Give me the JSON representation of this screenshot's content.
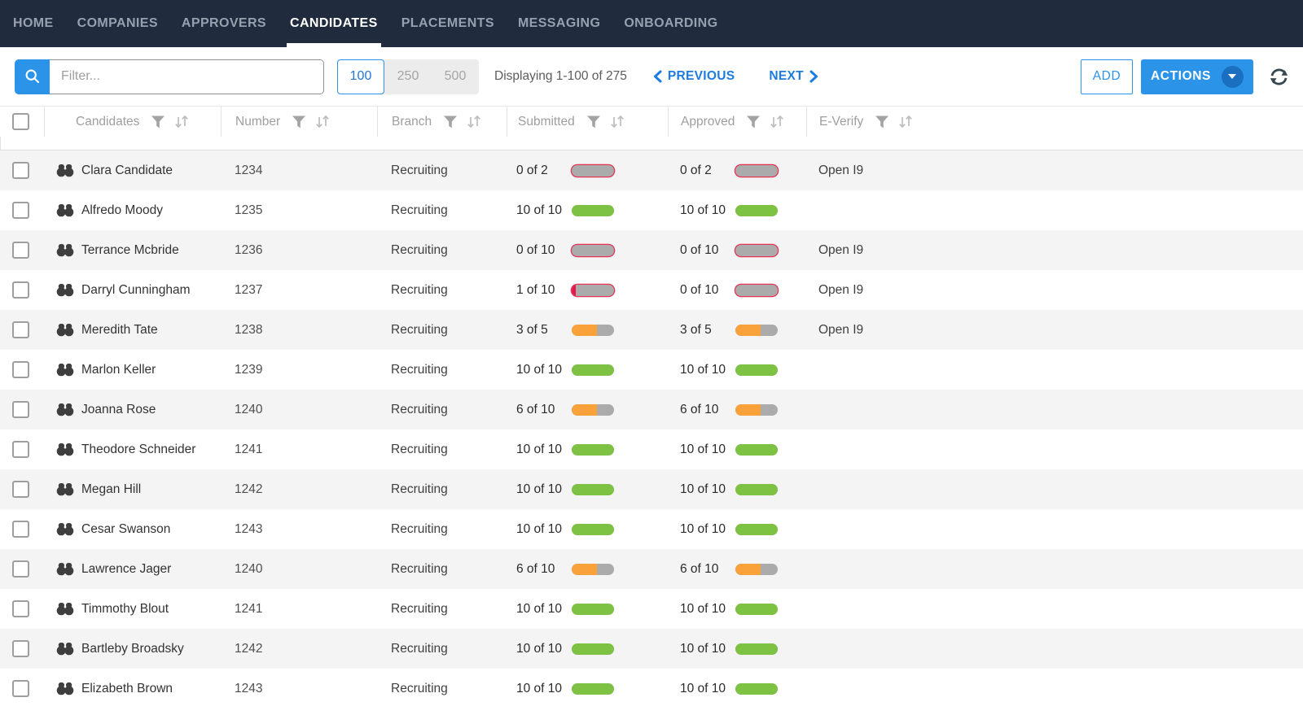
{
  "nav": {
    "items": [
      {
        "label": "HOME",
        "active": false
      },
      {
        "label": "COMPANIES",
        "active": false
      },
      {
        "label": "APPROVERS",
        "active": false
      },
      {
        "label": "CANDIDATES",
        "active": true
      },
      {
        "label": "PLACEMENTS",
        "active": false
      },
      {
        "label": "MESSAGING",
        "active": false
      },
      {
        "label": "ONBOARDING",
        "active": false
      }
    ]
  },
  "toolbar": {
    "filter_placeholder": "Filter...",
    "filter_value": "",
    "page_sizes": [
      {
        "label": "100",
        "active": true
      },
      {
        "label": "250",
        "active": false
      },
      {
        "label": "500",
        "active": false
      }
    ],
    "displaying": "Displaying 1-100 of 275",
    "previous_label": "PREVIOUS",
    "next_label": "NEXT",
    "add_label": "ADD",
    "actions_label": "ACTIONS"
  },
  "icons": {
    "search": "magnifier-icon",
    "filter": "funnel-icon",
    "sort": "sort-up-down-icon",
    "row_marker": "binoculars-icon",
    "previous": "chevron-left-icon",
    "next": "chevron-right-icon",
    "actions_menu": "caret-down-icon",
    "refresh": "refresh-arrows-icon"
  },
  "colors": {
    "nav_bg": "#202c3e",
    "accent_blue": "#2b93e8",
    "link_blue": "#1d7ce0",
    "bar_green": "#7dc242",
    "bar_orange": "#f9a13b",
    "bar_red": "#e8174a",
    "bar_track_gray": "#ababab",
    "row_alt_gray": "#f4f4f4"
  },
  "table": {
    "columns": [
      {
        "label": "Candidates"
      },
      {
        "label": "Number"
      },
      {
        "label": "Branch"
      },
      {
        "label": "Submitted"
      },
      {
        "label": "Approved"
      },
      {
        "label": "E-Verify"
      }
    ],
    "rows": [
      {
        "name": "Clara Candidate",
        "number": "1234",
        "branch": "Recruiting",
        "submitted": {
          "label": "0 of 2",
          "value": 0,
          "total": 2,
          "status": "red"
        },
        "approved": {
          "label": "0 of 2",
          "value": 0,
          "total": 2,
          "status": "red"
        },
        "everify": "Open I9"
      },
      {
        "name": "Alfredo Moody",
        "number": "1235",
        "branch": "Recruiting",
        "submitted": {
          "label": "10 of 10",
          "value": 10,
          "total": 10,
          "status": "green"
        },
        "approved": {
          "label": "10 of 10",
          "value": 10,
          "total": 10,
          "status": "green"
        },
        "everify": ""
      },
      {
        "name": "Terrance Mcbride",
        "number": "1236",
        "branch": "Recruiting",
        "submitted": {
          "label": "0 of 10",
          "value": 0,
          "total": 10,
          "status": "red"
        },
        "approved": {
          "label": "0 of 10",
          "value": 0,
          "total": 10,
          "status": "red"
        },
        "everify": "Open I9"
      },
      {
        "name": "Darryl Cunningham",
        "number": "1237",
        "branch": "Recruiting",
        "submitted": {
          "label": "1 of 10",
          "value": 1,
          "total": 10,
          "status": "red"
        },
        "approved": {
          "label": "0 of 10",
          "value": 0,
          "total": 10,
          "status": "red"
        },
        "everify": "Open I9"
      },
      {
        "name": "Meredith Tate",
        "number": "1238",
        "branch": "Recruiting",
        "submitted": {
          "label": "3 of 5",
          "value": 3,
          "total": 5,
          "status": "orange"
        },
        "approved": {
          "label": "3 of 5",
          "value": 3,
          "total": 5,
          "status": "orange"
        },
        "everify": "Open I9"
      },
      {
        "name": "Marlon Keller",
        "number": "1239",
        "branch": "Recruiting",
        "submitted": {
          "label": "10 of 10",
          "value": 10,
          "total": 10,
          "status": "green"
        },
        "approved": {
          "label": "10 of 10",
          "value": 10,
          "total": 10,
          "status": "green"
        },
        "everify": ""
      },
      {
        "name": "Joanna Rose",
        "number": "1240",
        "branch": "Recruiting",
        "submitted": {
          "label": "6 of 10",
          "value": 6,
          "total": 10,
          "status": "orange"
        },
        "approved": {
          "label": "6 of 10",
          "value": 6,
          "total": 10,
          "status": "orange"
        },
        "everify": ""
      },
      {
        "name": "Theodore Schneider",
        "number": "1241",
        "branch": "Recruiting",
        "submitted": {
          "label": "10 of 10",
          "value": 10,
          "total": 10,
          "status": "green"
        },
        "approved": {
          "label": "10 of 10",
          "value": 10,
          "total": 10,
          "status": "green"
        },
        "everify": ""
      },
      {
        "name": "Megan Hill",
        "number": "1242",
        "branch": "Recruiting",
        "submitted": {
          "label": "10 of 10",
          "value": 10,
          "total": 10,
          "status": "green"
        },
        "approved": {
          "label": "10 of 10",
          "value": 10,
          "total": 10,
          "status": "green"
        },
        "everify": ""
      },
      {
        "name": "Cesar Swanson",
        "number": "1243",
        "branch": "Recruiting",
        "submitted": {
          "label": "10 of 10",
          "value": 10,
          "total": 10,
          "status": "green"
        },
        "approved": {
          "label": "10 of 10",
          "value": 10,
          "total": 10,
          "status": "green"
        },
        "everify": ""
      },
      {
        "name": "Lawrence Jager",
        "number": "1240",
        "branch": "Recruiting",
        "submitted": {
          "label": "6 of 10",
          "value": 6,
          "total": 10,
          "status": "orange"
        },
        "approved": {
          "label": "6 of 10",
          "value": 6,
          "total": 10,
          "status": "orange"
        },
        "everify": ""
      },
      {
        "name": "Timmothy Blout",
        "number": "1241",
        "branch": "Recruiting",
        "submitted": {
          "label": "10 of 10",
          "value": 10,
          "total": 10,
          "status": "green"
        },
        "approved": {
          "label": "10 of 10",
          "value": 10,
          "total": 10,
          "status": "green"
        },
        "everify": ""
      },
      {
        "name": "Bartleby Broadsky",
        "number": "1242",
        "branch": "Recruiting",
        "submitted": {
          "label": "10 of 10",
          "value": 10,
          "total": 10,
          "status": "green"
        },
        "approved": {
          "label": "10 of 10",
          "value": 10,
          "total": 10,
          "status": "green"
        },
        "everify": ""
      },
      {
        "name": "Elizabeth Brown",
        "number": "1243",
        "branch": "Recruiting",
        "submitted": {
          "label": "10 of 10",
          "value": 10,
          "total": 10,
          "status": "green"
        },
        "approved": {
          "label": "10 of 10",
          "value": 10,
          "total": 10,
          "status": "green"
        },
        "everify": ""
      }
    ]
  }
}
